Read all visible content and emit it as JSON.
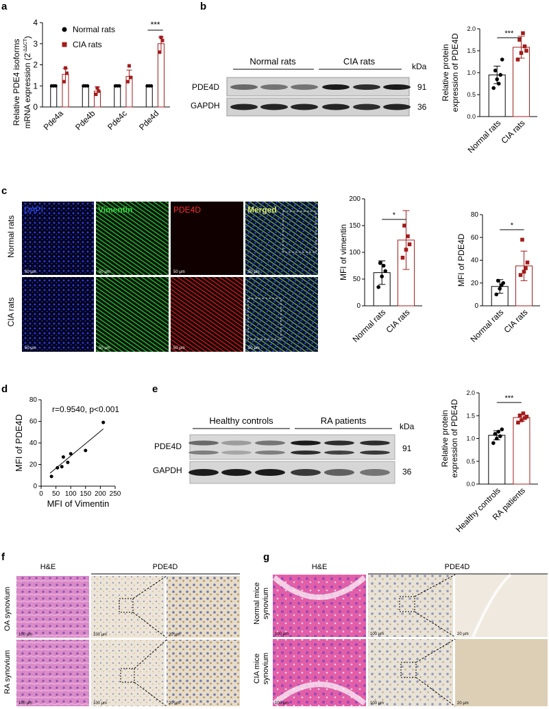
{
  "panel_labels": {
    "a": "a",
    "b": "b",
    "c": "c",
    "d": "d",
    "e": "e",
    "f": "f",
    "g": "g"
  },
  "colors": {
    "normal": "#000000",
    "cia": "#a31c1c",
    "dapi": "#2040ff",
    "vimentin": "#2fbf3a",
    "pde4d": "#ff2a2a",
    "merged": "#d9e96b"
  },
  "chart_data": [
    {
      "id": "a",
      "type": "bar",
      "ylabel_line1": "Relative PDE4 isoforms",
      "ylabel_line2": "mRNA expression (2",
      "ylabel_sup": "-ΔΔCT",
      "ylabel_end": ")",
      "ylim": [
        0,
        4
      ],
      "yticks": [
        "0",
        "1",
        "2",
        "3",
        "4"
      ],
      "categories": [
        "Pde4a",
        "Pde4b",
        "Pde4c",
        "Pde4d"
      ],
      "series": [
        {
          "name": "Normal rats",
          "color": "#000000",
          "values": [
            1.0,
            1.0,
            1.0,
            1.0
          ],
          "points": [
            [
              1,
              1,
              1
            ],
            [
              1,
              1,
              1
            ],
            [
              1,
              1,
              1
            ],
            [
              1,
              1,
              1
            ]
          ]
        },
        {
          "name": "CIA rats",
          "color": "#a31c1c",
          "values": [
            1.55,
            0.75,
            1.45,
            3.0
          ],
          "errors": [
            0.28,
            0.2,
            0.3,
            0.32
          ],
          "points": [
            [
              1.2,
              1.85,
              1.6
            ],
            [
              0.6,
              0.9,
              0.75
            ],
            [
              1.2,
              1.95,
              1.4
            ],
            [
              2.6,
              3.3,
              3.15
            ]
          ]
        }
      ],
      "significance": [
        {
          "category": "Pde4d",
          "text": "***"
        }
      ]
    },
    {
      "id": "b",
      "type": "bar",
      "ylabel_line1": "Relative protein",
      "ylabel_line2": "expression of PDE4D",
      "ylim": [
        0,
        2.0
      ],
      "yticks": [
        "0.0",
        "0.5",
        "1.0",
        "1.5",
        "2.0"
      ],
      "categories": [
        "Normal rats",
        "CIA rats"
      ],
      "values": [
        0.95,
        1.58
      ],
      "errors": [
        0.2,
        0.25
      ],
      "points": [
        [
          0.65,
          0.85,
          0.95,
          1.05,
          0.75,
          1.3
        ],
        [
          1.3,
          1.45,
          1.6,
          1.75,
          1.9,
          1.5
        ]
      ],
      "significance": "***"
    },
    {
      "id": "c1",
      "type": "bar",
      "ylabel": "MFI of vimentin",
      "ylim": [
        0,
        200
      ],
      "yticks": [
        "0",
        "50",
        "100",
        "150",
        "200"
      ],
      "categories": [
        "Normal rats",
        "CIA rats"
      ],
      "values": [
        62,
        123
      ],
      "errors": [
        22,
        55
      ],
      "points": [
        [
          35,
          55,
          65,
          80,
          75
        ],
        [
          90,
          105,
          115,
          150,
          130
        ]
      ],
      "significance": "*"
    },
    {
      "id": "c2",
      "type": "bar",
      "ylabel": "MFI of PDE4D",
      "ylim": [
        0,
        80
      ],
      "yticks": [
        "0",
        "20",
        "40",
        "60",
        "80"
      ],
      "categories": [
        "Normal rats",
        "CIA rats"
      ],
      "values": [
        17,
        35
      ],
      "errors": [
        6,
        13
      ],
      "points": [
        [
          10,
          15,
          20,
          22,
          18
        ],
        [
          27,
          30,
          38,
          58,
          33
        ]
      ],
      "significance": "*"
    },
    {
      "id": "d",
      "type": "scatter",
      "xlabel": "MFI of Vimentin",
      "ylabel": "MFI of PDE4D",
      "xlim": [
        0,
        250
      ],
      "ylim": [
        0,
        80
      ],
      "xticks": [
        "0",
        "50",
        "100",
        "150",
        "200",
        "250"
      ],
      "yticks": [
        "0",
        "20",
        "40",
        "60",
        "80"
      ],
      "annotation": "r=0.9540, p<0.001",
      "x": [
        35,
        55,
        70,
        90,
        100,
        150,
        75,
        210
      ],
      "y": [
        9,
        17,
        18,
        22,
        30,
        33,
        27,
        59
      ],
      "fit": [
        [
          30,
          12
        ],
        [
          210,
          53
        ]
      ]
    },
    {
      "id": "e",
      "type": "bar",
      "ylabel_line1": "Relative protein",
      "ylabel_line2": "expression of PDE4D",
      "ylim": [
        0,
        2.0
      ],
      "yticks": [
        "0.0",
        "0.5",
        "1.0",
        "1.5",
        "2.0"
      ],
      "categories": [
        "Healthy controls",
        "RA patients"
      ],
      "values": [
        1.07,
        1.46
      ],
      "errors": [
        0.1,
        0.08
      ],
      "points": [
        [
          0.9,
          1.0,
          1.05,
          1.1,
          1.15,
          1.2
        ],
        [
          1.35,
          1.4,
          1.45,
          1.5,
          1.55,
          1.48
        ]
      ],
      "significance": "***"
    }
  ],
  "blot_b": {
    "group1": "Normal rats",
    "group2": "CIA rats",
    "kda": "kDa",
    "rows": [
      {
        "label": "PDE4D",
        "kda": "91"
      },
      {
        "label": "GAPDH",
        "kda": "36"
      }
    ]
  },
  "blot_e": {
    "group1": "Healthy controls",
    "group2": "RA patients",
    "kda": "kDa",
    "rows": [
      {
        "label": "PDE4D",
        "kda": "91"
      },
      {
        "label": "GAPDH",
        "kda": "36"
      }
    ]
  },
  "panel_c": {
    "columns": [
      "DAPI",
      "Vimentin",
      "PDE4D",
      "Merged"
    ],
    "rows": [
      "Normal rats",
      "CIA rats"
    ],
    "scale": "50 μm"
  },
  "panel_f": {
    "he": "H&E",
    "pde": "PDE4D",
    "rows": [
      "OA synovium",
      "RA synovium"
    ],
    "scales": [
      "100 μm",
      "100 μm",
      "20 μm"
    ]
  },
  "panel_g": {
    "he": "H&E",
    "pde": "PDE4D",
    "rows_l1": [
      "Normal mice",
      "CIA mice"
    ],
    "rows_l2": [
      "synovium",
      "synovium"
    ],
    "scales": [
      "100 μm",
      "100 μm",
      "20 μm"
    ]
  }
}
